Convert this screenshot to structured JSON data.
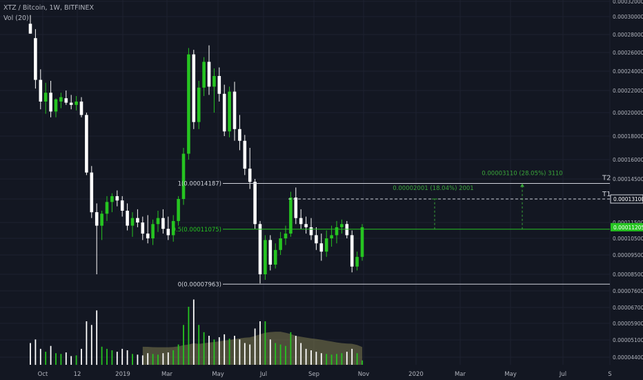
{
  "header": {
    "symbol_line": "XTZ / Bitcoin, 1W, BITFINEX",
    "indicator": "Vol (20)"
  },
  "colors": {
    "background": "#131722",
    "up": "#26c421",
    "down": "#ffffff",
    "grid": "#1e2230",
    "axis_text": "#b2b5be",
    "fib_line": "#d1d4dc",
    "fib_label": "#c9a227",
    "mid_line": "#26c421",
    "target_text": "#3aa63a",
    "volume_ma_fill": "#7d7a4f"
  },
  "chart_data": {
    "type": "candlestick",
    "y_ticks": [
      "0.00032000",
      "0.00030000",
      "0.00028000",
      "0.00026000",
      "0.00024000",
      "0.00022000",
      "0.00020000",
      "0.00018000",
      "0.00016000",
      "0.00014500",
      "0.00013100",
      "0.00011500",
      "0.00010500",
      "0.00009500",
      "0.00008500",
      "0.00007600",
      "0.00006700",
      "0.00005900",
      "0.00005100",
      "0.00004400"
    ],
    "x_ticks": [
      "Oct",
      "12",
      "2019",
      "Mar",
      "May",
      "Jul",
      "Sep",
      "Nov",
      "2020",
      "Mar",
      "May",
      "Jul",
      "S"
    ],
    "candles": [
      {
        "o": 0.000292,
        "h": 0.000302,
        "l": 0.000281,
        "c": 0.000281,
        "v": 0.3
      },
      {
        "o": 0.000276,
        "h": 0.000286,
        "l": 0.000222,
        "c": 0.000231,
        "v": 0.35
      },
      {
        "o": 0.000231,
        "h": 0.000242,
        "l": 0.000203,
        "c": 0.00021,
        "v": 0.22
      },
      {
        "o": 0.00021,
        "h": 0.000228,
        "l": 0.000199,
        "c": 0.000218,
        "v": 0.18
      },
      {
        "o": 0.000218,
        "h": 0.00023,
        "l": 0.000196,
        "c": 0.000201,
        "v": 0.26
      },
      {
        "o": 0.000201,
        "h": 0.000213,
        "l": 0.000196,
        "c": 0.000212,
        "v": 0.16
      },
      {
        "o": 0.00021,
        "h": 0.000218,
        "l": 0.000204,
        "c": 0.000214,
        "v": 0.15
      },
      {
        "o": 0.000213,
        "h": 0.00022,
        "l": 0.000207,
        "c": 0.000209,
        "v": 0.17
      },
      {
        "o": 0.000209,
        "h": 0.000216,
        "l": 0.000203,
        "c": 0.000207,
        "v": 0.12
      },
      {
        "o": 0.000207,
        "h": 0.000215,
        "l": 0.000202,
        "c": 0.00021,
        "v": 0.13
      },
      {
        "o": 0.00021,
        "h": 0.000214,
        "l": 0.000196,
        "c": 0.000198,
        "v": 0.22
      },
      {
        "o": 0.000198,
        "h": 0.0002,
        "l": 0.000148,
        "c": 0.00015,
        "v": 0.6
      },
      {
        "o": 0.00015,
        "h": 0.000155,
        "l": 0.000118,
        "c": 0.000122,
        "v": 0.55
      },
      {
        "o": 0.000122,
        "h": 0.000128,
        "l": 8.5e-05,
        "c": 0.000113,
        "v": 0.75
      },
      {
        "o": 0.000113,
        "h": 0.000123,
        "l": 0.000104,
        "c": 0.000121,
        "v": 0.25
      },
      {
        "o": 0.000121,
        "h": 0.000133,
        "l": 0.000116,
        "c": 0.000129,
        "v": 0.22
      },
      {
        "o": 0.000129,
        "h": 0.000135,
        "l": 0.000122,
        "c": 0.000133,
        "v": 0.2
      },
      {
        "o": 0.000133,
        "h": 0.000137,
        "l": 0.000126,
        "c": 0.00013,
        "v": 0.18
      },
      {
        "o": 0.00013,
        "h": 0.000133,
        "l": 0.000119,
        "c": 0.000123,
        "v": 0.22
      },
      {
        "o": 0.000123,
        "h": 0.000128,
        "l": 0.00011,
        "c": 0.000113,
        "v": 0.2
      },
      {
        "o": 0.000113,
        "h": 0.000122,
        "l": 0.000106,
        "c": 0.000118,
        "v": 0.15
      },
      {
        "o": 0.000118,
        "h": 0.000124,
        "l": 0.000112,
        "c": 0.000115,
        "v": 0.14
      },
      {
        "o": 0.000115,
        "h": 0.000119,
        "l": 0.000104,
        "c": 0.000108,
        "v": 0.13
      },
      {
        "o": 0.000108,
        "h": 0.00012,
        "l": 0.000102,
        "c": 0.000105,
        "v": 0.16
      },
      {
        "o": 0.000105,
        "h": 0.000117,
        "l": 0.000101,
        "c": 0.000114,
        "v": 0.15
      },
      {
        "o": 0.000114,
        "h": 0.000123,
        "l": 0.000109,
        "c": 0.000118,
        "v": 0.14
      },
      {
        "o": 0.000118,
        "h": 0.000124,
        "l": 0.000108,
        "c": 0.000111,
        "v": 0.16
      },
      {
        "o": 0.000111,
        "h": 0.000119,
        "l": 0.000104,
        "c": 0.000107,
        "v": 0.17
      },
      {
        "o": 0.000107,
        "h": 0.00012,
        "l": 0.000103,
        "c": 0.000116,
        "v": 0.2
      },
      {
        "o": 0.000116,
        "h": 0.000133,
        "l": 0.000113,
        "c": 0.000131,
        "v": 0.28
      },
      {
        "o": 0.000131,
        "h": 0.00017,
        "l": 0.000127,
        "c": 0.000165,
        "v": 0.55
      },
      {
        "o": 0.000165,
        "h": 0.000265,
        "l": 0.00016,
        "c": 0.000258,
        "v": 0.8
      },
      {
        "o": 0.000258,
        "h": 0.000263,
        "l": 0.000186,
        "c": 0.000192,
        "v": 0.9
      },
      {
        "o": 0.000192,
        "h": 0.00023,
        "l": 0.000186,
        "c": 0.000223,
        "v": 0.55
      },
      {
        "o": 0.000223,
        "h": 0.000255,
        "l": 0.000215,
        "c": 0.00025,
        "v": 0.45
      },
      {
        "o": 0.00025,
        "h": 0.000268,
        "l": 0.000216,
        "c": 0.000224,
        "v": 0.4
      },
      {
        "o": 0.000224,
        "h": 0.000243,
        "l": 0.0002,
        "c": 0.000235,
        "v": 0.35
      },
      {
        "o": 0.000235,
        "h": 0.000244,
        "l": 0.00021,
        "c": 0.000217,
        "v": 0.38
      },
      {
        "o": 0.000217,
        "h": 0.000226,
        "l": 0.00018,
        "c": 0.000184,
        "v": 0.42
      },
      {
        "o": 0.000184,
        "h": 0.000224,
        "l": 0.000179,
        "c": 0.000219,
        "v": 0.36
      },
      {
        "o": 0.000219,
        "h": 0.000229,
        "l": 0.000176,
        "c": 0.000186,
        "v": 0.4
      },
      {
        "o": 0.000186,
        "h": 0.000198,
        "l": 0.000168,
        "c": 0.000176,
        "v": 0.35
      },
      {
        "o": 0.000176,
        "h": 0.000181,
        "l": 0.000148,
        "c": 0.000153,
        "v": 0.3
      },
      {
        "o": 0.000153,
        "h": 0.00017,
        "l": 0.000138,
        "c": 0.000143,
        "v": 0.28
      },
      {
        "o": 0.000143,
        "h": 0.000145,
        "l": 0.000111,
        "c": 0.000114,
        "v": 0.5
      },
      {
        "o": 0.000114,
        "h": 0.000116,
        "l": 8e-05,
        "c": 8.5e-05,
        "v": 0.6
      },
      {
        "o": 8.5e-05,
        "h": 0.000107,
        "l": 8.2e-05,
        "c": 0.000104,
        "v": 0.6
      },
      {
        "o": 0.000104,
        "h": 0.000107,
        "l": 8.7e-05,
        "c": 9e-05,
        "v": 0.35
      },
      {
        "o": 9e-05,
        "h": 0.000102,
        "l": 8.8e-05,
        "c": 9.8e-05,
        "v": 0.3
      },
      {
        "o": 9.8e-05,
        "h": 0.000109,
        "l": 9.5e-05,
        "c": 0.000105,
        "v": 0.28
      },
      {
        "o": 0.000105,
        "h": 0.000113,
        "l": 0.000101,
        "c": 0.000108,
        "v": 0.26
      },
      {
        "o": 0.000108,
        "h": 0.000136,
        "l": 0.000106,
        "c": 0.000132,
        "v": 0.45
      },
      {
        "o": 0.000132,
        "h": 0.000139,
        "l": 0.000114,
        "c": 0.000118,
        "v": 0.4
      },
      {
        "o": 0.000118,
        "h": 0.000124,
        "l": 0.000111,
        "c": 0.000114,
        "v": 0.3
      },
      {
        "o": 0.000114,
        "h": 0.000119,
        "l": 0.000108,
        "c": 0.000112,
        "v": 0.22
      },
      {
        "o": 0.000112,
        "h": 0.000118,
        "l": 0.000104,
        "c": 0.000107,
        "v": 0.2
      },
      {
        "o": 0.000107,
        "h": 0.000112,
        "l": 9.8e-05,
        "c": 0.000102,
        "v": 0.18
      },
      {
        "o": 0.000102,
        "h": 0.000108,
        "l": 9.2e-05,
        "c": 9.7e-05,
        "v": 0.16
      },
      {
        "o": 9.7e-05,
        "h": 0.00011,
        "l": 9.4e-05,
        "c": 0.000105,
        "v": 0.15
      },
      {
        "o": 0.000105,
        "h": 0.000113,
        "l": 0.0001,
        "c": 0.000107,
        "v": 0.14
      },
      {
        "o": 0.000107,
        "h": 0.000116,
        "l": 0.000102,
        "c": 0.000112,
        "v": 0.15
      },
      {
        "o": 0.000112,
        "h": 0.000117,
        "l": 0.000108,
        "c": 0.000114,
        "v": 0.16
      },
      {
        "o": 0.000114,
        "h": 0.000116,
        "l": 0.000105,
        "c": 0.000107,
        "v": 0.18
      },
      {
        "o": 0.000107,
        "h": 0.00011,
        "l": 8.6e-05,
        "c": 8.9e-05,
        "v": 0.22
      },
      {
        "o": 8.9e-05,
        "h": 9.7e-05,
        "l": 8.7e-05,
        "c": 9.4e-05,
        "v": 0.16
      },
      {
        "o": 9.4e-05,
        "h": 0.000114,
        "l": 9.2e-05,
        "c": 0.000112,
        "v": 0.06
      }
    ],
    "fib_levels": [
      {
        "label": "1(0.00014187)",
        "value": 0.00014187
      },
      {
        "label": "0.5(0.00011075)",
        "value": 0.00011075
      },
      {
        "label": "0(0.00007963)",
        "value": 7.963e-05
      }
    ],
    "targets": [
      {
        "name": "T1",
        "price": 0.000131,
        "axis_label": "0.00013100",
        "measure_text": "0.00002001 (18.04%) 2001"
      },
      {
        "name": "T2",
        "price": 0.00014187,
        "measure_text": "0.00003110 (28.05%) 3110"
      }
    ],
    "current_price_label": "0.00011205",
    "current_price": 0.00011205
  }
}
